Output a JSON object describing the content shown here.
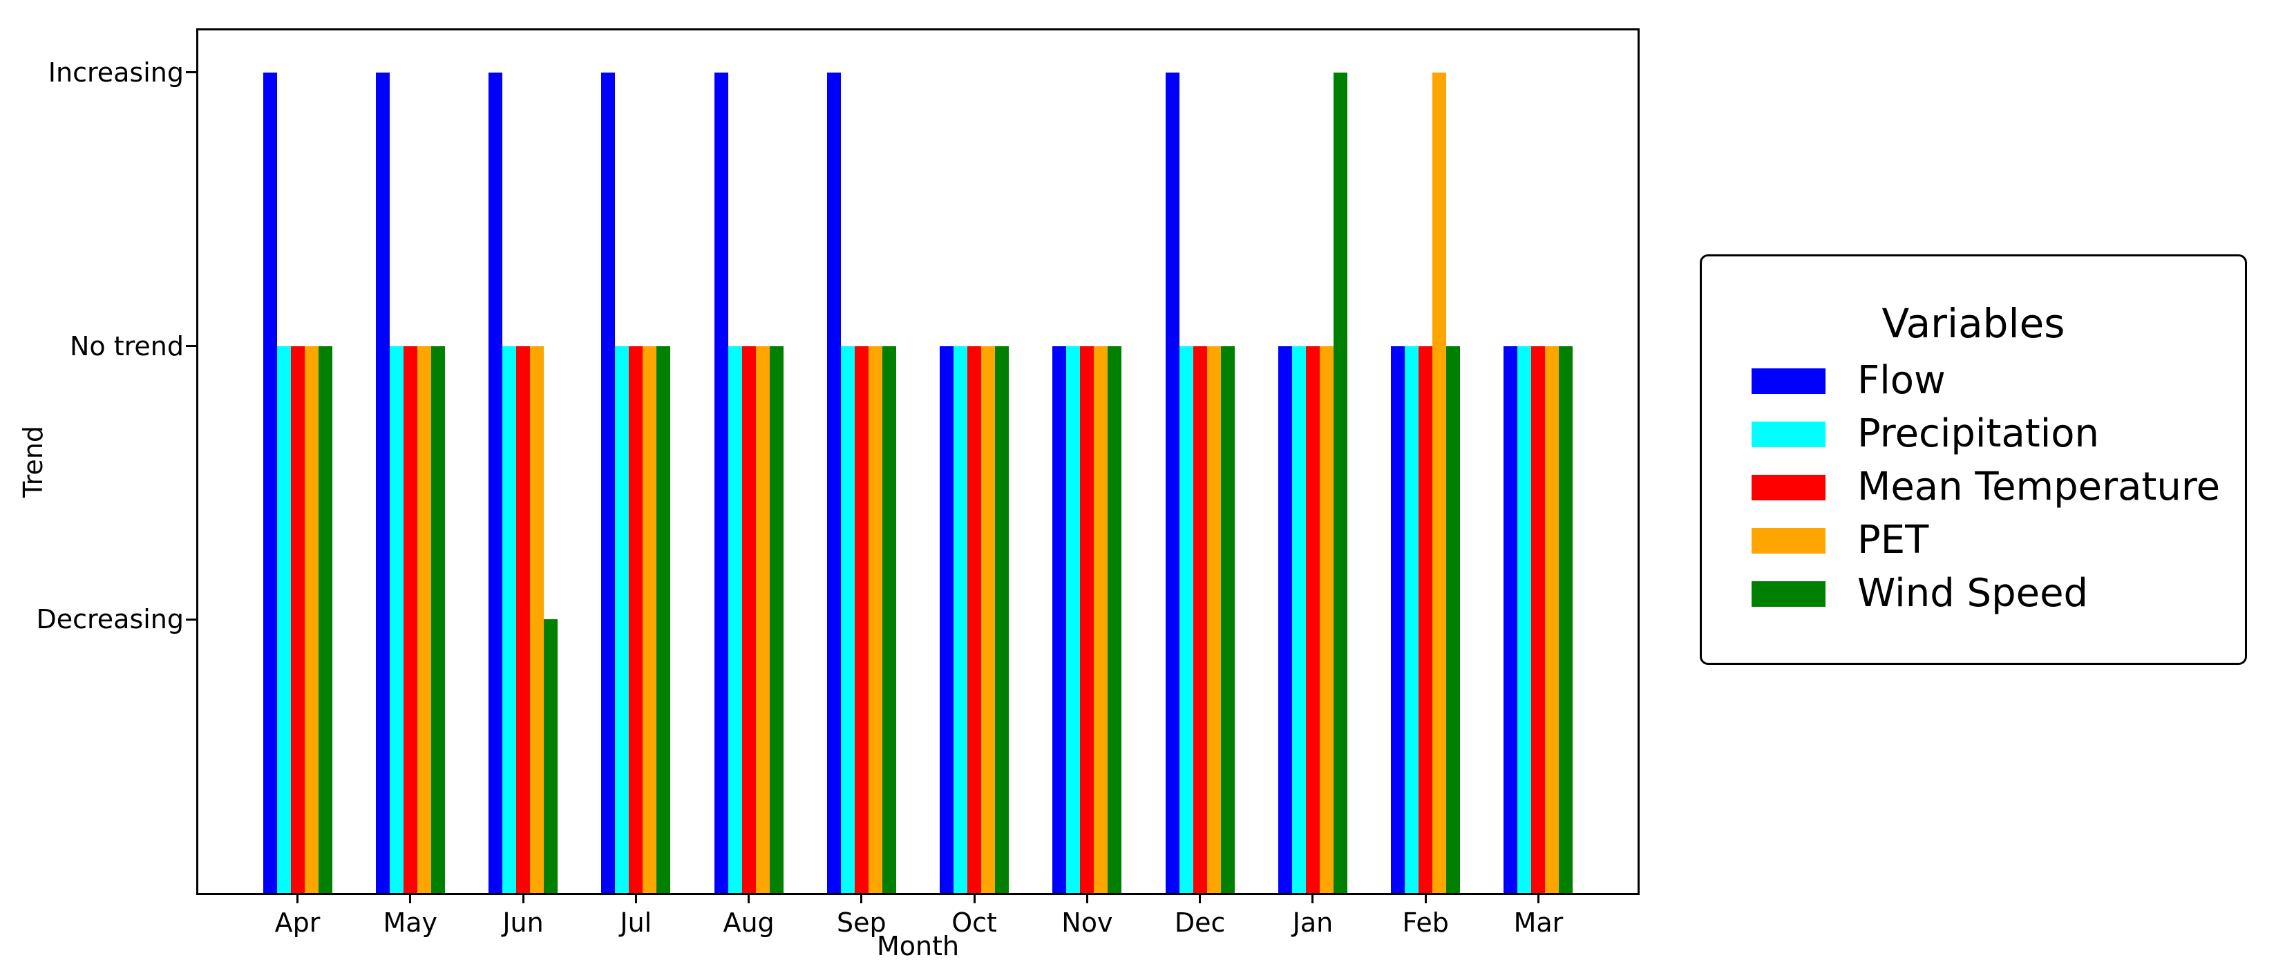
{
  "figure": {
    "background": "#ffffff"
  },
  "legend": {
    "title": "Variables"
  },
  "chart_data": {
    "type": "bar",
    "title": "",
    "xlabel": "Month",
    "ylabel": "Trend",
    "categories": [
      "Apr",
      "May",
      "Jun",
      "Jul",
      "Aug",
      "Sep",
      "Oct",
      "Nov",
      "Dec",
      "Jan",
      "Feb",
      "Mar"
    ],
    "series": [
      {
        "name": "Flow",
        "color": "#0000FF",
        "values": [
          3,
          3,
          3,
          3,
          3,
          3,
          2,
          2,
          3,
          2,
          2,
          2
        ]
      },
      {
        "name": "Precipitation",
        "color": "#00FFFF",
        "values": [
          2,
          2,
          2,
          2,
          2,
          2,
          2,
          2,
          2,
          2,
          2,
          2
        ]
      },
      {
        "name": "Mean Temperature",
        "color": "#FF0000",
        "values": [
          2,
          2,
          2,
          2,
          2,
          2,
          2,
          2,
          2,
          2,
          2,
          2
        ]
      },
      {
        "name": "PET",
        "color": "#FFA500",
        "values": [
          2,
          2,
          2,
          2,
          2,
          2,
          2,
          2,
          2,
          2,
          3,
          2
        ]
      },
      {
        "name": "Wind Speed",
        "color": "#008000",
        "values": [
          2,
          2,
          1,
          2,
          2,
          2,
          2,
          2,
          2,
          3,
          2,
          2
        ]
      }
    ],
    "y_ticks": [
      {
        "value": 3,
        "label": "Increasing"
      },
      {
        "value": 2,
        "label": "No trend"
      },
      {
        "value": 1,
        "label": "Decreasing"
      }
    ],
    "trend_scale": {
      "1": "Decreasing",
      "2": "No trend",
      "3": "Increasing"
    },
    "ylim": [
      0,
      3.15
    ],
    "grid": false,
    "legend_position": "right-outside",
    "legend_title": "Variables"
  }
}
